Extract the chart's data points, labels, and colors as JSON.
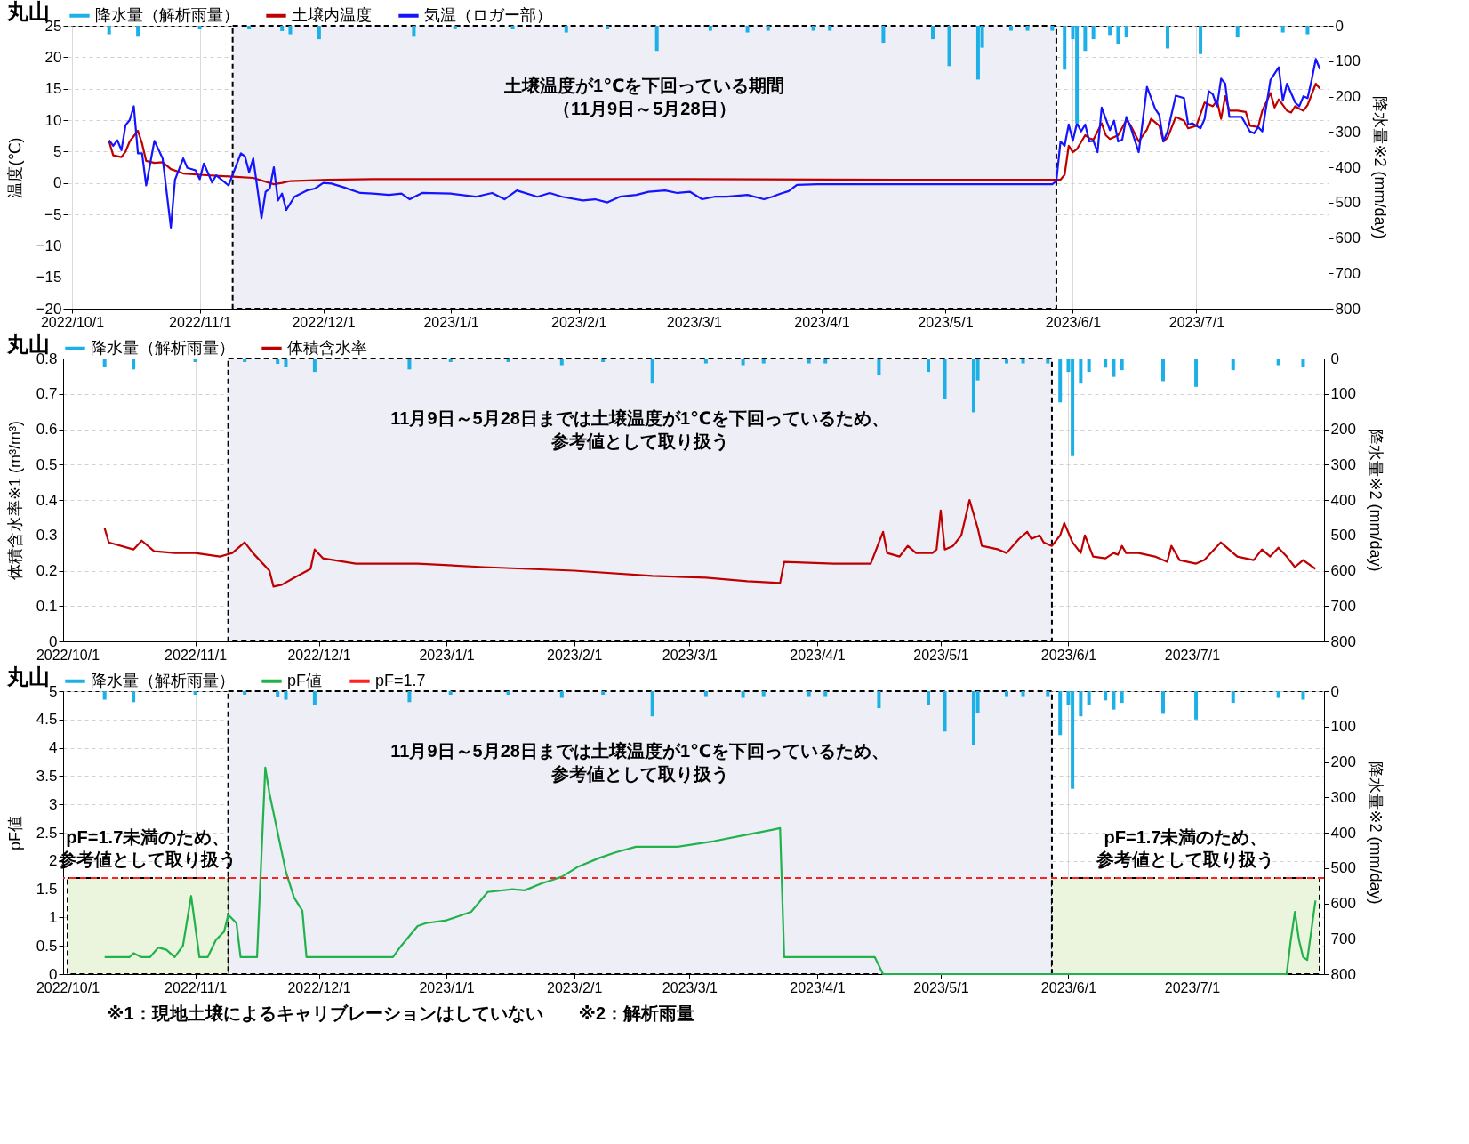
{
  "chart_data": [
    {
      "type": "line",
      "title": "丸山",
      "ylabel": "温度(℃)",
      "y2label": "降水量※2 (mm/day)",
      "xlim": [
        "2022-10-01",
        "2023-08-01"
      ],
      "xticks": [
        {
          "value": "2022-10-01",
          "label": "2022/10/1"
        },
        {
          "value": "2022-11-01",
          "label": "2022/11/1"
        },
        {
          "value": "2022-12-01",
          "label": "2022/12/1"
        },
        {
          "value": "2023-01-01",
          "label": "2023/1/1"
        },
        {
          "value": "2023-02-01",
          "label": "2023/2/1"
        },
        {
          "value": "2023-03-01",
          "label": "2023/3/1"
        },
        {
          "value": "2023-04-01",
          "label": "2023/4/1"
        },
        {
          "value": "2023-05-01",
          "label": "2023/5/1"
        },
        {
          "value": "2023-06-01",
          "label": "2023/6/1"
        },
        {
          "value": "2023-07-01",
          "label": "2023/7/1"
        }
      ],
      "ylim": [
        -20,
        25
      ],
      "yticks": [
        -20,
        -15,
        -10,
        -5,
        0,
        5,
        10,
        15,
        20,
        25
      ],
      "y2lim": [
        800,
        0
      ],
      "y2ticks": [
        0,
        100,
        200,
        300,
        400,
        500,
        600,
        700,
        800
      ],
      "grid": true,
      "legend": "top",
      "bands": [
        {
          "axis": "x",
          "from": "2022-11-09",
          "to": "2023-05-28",
          "label": "土壌温度が1℃を下回っている期間（11月9日～5月28日）",
          "color": "#eeeef6"
        }
      ],
      "series": [
        {
          "name": "降水量（解析雨量）",
          "type": "bar",
          "axis": "y2",
          "color": "#1cb0e6",
          "x": [
            "2022-10-10",
            "2022-10-17",
            "2022-11-01",
            "2022-11-13",
            "2022-11-21",
            "2022-11-23",
            "2022-11-30",
            "2022-12-23",
            "2023-01-02",
            "2023-01-16",
            "2023-01-29",
            "2023-02-08",
            "2023-02-20",
            "2023-03-05",
            "2023-03-14",
            "2023-03-19",
            "2023-03-30",
            "2023-04-03",
            "2023-04-16",
            "2023-04-28",
            "2023-05-02",
            "2023-05-09",
            "2023-05-10",
            "2023-05-17",
            "2023-05-21",
            "2023-05-27",
            "2023-05-30",
            "2023-06-01",
            "2023-06-02",
            "2023-06-04",
            "2023-06-06",
            "2023-06-10",
            "2023-06-12",
            "2023-06-14",
            "2023-06-24",
            "2023-07-02",
            "2023-07-11",
            "2023-07-22",
            "2023-07-28"
          ],
          "values": [
            24,
            31,
            10,
            10,
            15,
            24,
            38,
            31,
            10,
            10,
            19,
            10,
            71,
            14,
            19,
            14,
            14,
            14,
            48,
            38,
            114,
            152,
            62,
            14,
            14,
            14,
            124,
            38,
            276,
            71,
            38,
            26,
            52,
            33,
            64,
            80,
            33,
            19,
            24
          ]
        },
        {
          "name": "土壌内温度",
          "color": "#c00000",
          "x": [
            "2022-10-10",
            "2022-10-11",
            "2022-10-13",
            "2022-10-14",
            "2022-10-15",
            "2022-10-17",
            "2022-10-18",
            "2022-10-19",
            "2022-10-21",
            "2022-10-23",
            "2022-10-25",
            "2022-10-28",
            "2022-11-01",
            "2022-11-09",
            "2022-11-14",
            "2022-11-19",
            "2022-11-21",
            "2022-11-23",
            "2022-12-02",
            "2022-12-13",
            "2023-02-28",
            "2023-04-19",
            "2023-05-29",
            "2023-05-30",
            "2023-05-31",
            "2023-06-01",
            "2023-06-02",
            "2023-06-04",
            "2023-06-05",
            "2023-06-06",
            "2023-06-08",
            "2023-06-09",
            "2023-06-10",
            "2023-06-12",
            "2023-06-14",
            "2023-06-15",
            "2023-06-16",
            "2023-06-17",
            "2023-06-19",
            "2023-06-20",
            "2023-06-22",
            "2023-06-23",
            "2023-06-24",
            "2023-06-26",
            "2023-06-28",
            "2023-06-29",
            "2023-07-01",
            "2023-07-03",
            "2023-07-05",
            "2023-07-06",
            "2023-07-07",
            "2023-07-08",
            "2023-07-09",
            "2023-07-11",
            "2023-07-13",
            "2023-07-14",
            "2023-07-16",
            "2023-07-17",
            "2023-07-19",
            "2023-07-20",
            "2023-07-21",
            "2023-07-23",
            "2023-07-24",
            "2023-07-25",
            "2023-07-26",
            "2023-07-27",
            "2023-07-28",
            "2023-07-29",
            "2023-07-30",
            "2023-07-31"
          ],
          "values": [
            6.6,
            4.4,
            4.1,
            5,
            6.6,
            8.3,
            6.3,
            3.5,
            3.2,
            3.3,
            2.2,
            1.5,
            1.3,
            1.0,
            0.8,
            -0.2,
            0,
            0.3,
            0.5,
            0.6,
            0.6,
            0.5,
            0.5,
            1.3,
            5.9,
            4.9,
            5.4,
            7.6,
            7.1,
            6.9,
            9.5,
            7.6,
            7.0,
            7.6,
            10,
            9.2,
            7.9,
            6.6,
            8.5,
            10.2,
            9.1,
            6.6,
            7.2,
            10.5,
            9.9,
            8.7,
            9.1,
            12.8,
            12.2,
            13.1,
            10.2,
            13.8,
            11.5,
            11.5,
            11.3,
            9.1,
            8.9,
            11.5,
            14.3,
            12,
            13.3,
            11.5,
            11.2,
            12.2,
            11.8,
            11.5,
            12.4,
            14.1,
            15.8,
            15
          ]
        },
        {
          "name": "気温（ロガー部）",
          "color": "#1414ff",
          "x": [
            "2022-10-10",
            "2022-10-11",
            "2022-10-12",
            "2022-10-13",
            "2022-10-14",
            "2022-10-15",
            "2022-10-16",
            "2022-10-17",
            "2022-10-18",
            "2022-10-19",
            "2022-10-21",
            "2022-10-23",
            "2022-10-25",
            "2022-10-26",
            "2022-10-28",
            "2022-10-29",
            "2022-10-31",
            "2022-11-01",
            "2022-11-02",
            "2022-11-04",
            "2022-11-05",
            "2022-11-08",
            "2022-11-11",
            "2022-11-12",
            "2022-11-13",
            "2022-11-14",
            "2022-11-16",
            "2022-11-17",
            "2022-11-18",
            "2022-11-19",
            "2022-11-20",
            "2022-11-21",
            "2022-11-22",
            "2022-11-24",
            "2022-11-27",
            "2022-11-29",
            "2022-12-01",
            "2022-12-03",
            "2022-12-06",
            "2022-12-10",
            "2022-12-13",
            "2022-12-17",
            "2022-12-20",
            "2022-12-22",
            "2022-12-25",
            "2023-01-01",
            "2023-01-07",
            "2023-01-11",
            "2023-01-14",
            "2023-01-17",
            "2023-01-22",
            "2023-01-25",
            "2023-01-28",
            "2023-02-02",
            "2023-02-05",
            "2023-02-08",
            "2023-02-11",
            "2023-02-15",
            "2023-02-18",
            "2023-02-22",
            "2023-02-25",
            "2023-02-28",
            "2023-03-03",
            "2023-03-06",
            "2023-03-09",
            "2023-03-14",
            "2023-03-18",
            "2023-03-20",
            "2023-03-22",
            "2023-03-24",
            "2023-03-26",
            "2023-03-31",
            "2023-05-27",
            "2023-05-28",
            "2023-05-29",
            "2023-05-30",
            "2023-05-31",
            "2023-06-01",
            "2023-06-02",
            "2023-06-03",
            "2023-06-04",
            "2023-06-05",
            "2023-06-06",
            "2023-06-07",
            "2023-06-08",
            "2023-06-09",
            "2023-06-10",
            "2023-06-11",
            "2023-06-12",
            "2023-06-13",
            "2023-06-14",
            "2023-06-15",
            "2023-06-17",
            "2023-06-18",
            "2023-06-19",
            "2023-06-21",
            "2023-06-22",
            "2023-06-23",
            "2023-06-24",
            "2023-06-26",
            "2023-06-28",
            "2023-06-29",
            "2023-06-30",
            "2023-07-01",
            "2023-07-02",
            "2023-07-03",
            "2023-07-04",
            "2023-07-05",
            "2023-07-06",
            "2023-07-07",
            "2023-07-08",
            "2023-07-09",
            "2023-07-12",
            "2023-07-14",
            "2023-07-15",
            "2023-07-16",
            "2023-07-17",
            "2023-07-19",
            "2023-07-21",
            "2023-07-22",
            "2023-07-23",
            "2023-07-25",
            "2023-07-26",
            "2023-07-27",
            "2023-07-28",
            "2023-07-29",
            "2023-07-30",
            "2023-07-31"
          ],
          "values": [
            6.8,
            5.9,
            6.8,
            5.2,
            9.2,
            10,
            12.2,
            4.7,
            4.7,
            -0.4,
            6.7,
            3.9,
            -7.1,
            0.5,
            3.9,
            2.4,
            2,
            0.6,
            3.1,
            0.1,
            1.2,
            -0.4,
            4.7,
            4.2,
            1.7,
            3.9,
            -5.6,
            -1.4,
            -0.9,
            2.5,
            -2.8,
            -1.7,
            -4.3,
            -2.2,
            -1.2,
            -0.9,
            0,
            -0.1,
            -0.7,
            -1.6,
            -1.7,
            -1.9,
            -1.7,
            -2.6,
            -1.6,
            -1.7,
            -2.2,
            -1.6,
            -2.6,
            -1.2,
            -2.2,
            -1.6,
            -2.2,
            -2.8,
            -2.6,
            -3.1,
            -2.2,
            -1.9,
            -1.4,
            -1.2,
            -1.6,
            -1.4,
            -2.6,
            -2.2,
            -2.2,
            -1.9,
            -2.6,
            -2.2,
            -1.7,
            -1.3,
            -0.3,
            -0.2,
            -0.2,
            0.3,
            6.6,
            5.9,
            9.3,
            6.7,
            9.5,
            8.2,
            9.3,
            6.6,
            6.7,
            4.9,
            12,
            10.2,
            8.4,
            9.9,
            6.6,
            6.9,
            10.5,
            8.9,
            4.9,
            10,
            15.3,
            11.8,
            10.8,
            6.6,
            8.2,
            13.9,
            13.5,
            9.3,
            9.5,
            9.1,
            8.7,
            10.2,
            14.6,
            14.1,
            12.2,
            16.6,
            15.8,
            10.5,
            10.5,
            8.2,
            7.9,
            8.9,
            8.2,
            16.4,
            18.4,
            13.1,
            15.8,
            12.8,
            12.2,
            13.8,
            13.5,
            16.4,
            19.7,
            18.1
          ]
        }
      ]
    },
    {
      "type": "line",
      "title": "丸山",
      "ylabel": "体積含水率※1 (m³/m³)",
      "y2label": "降水量※2 (mm/day)",
      "xlim": [
        "2022-10-01",
        "2023-08-01"
      ],
      "xticks": [
        {
          "value": "2022-10-01",
          "label": "2022/10/1"
        },
        {
          "value": "2022-11-01",
          "label": "2022/11/1"
        },
        {
          "value": "2022-12-01",
          "label": "2022/12/1"
        },
        {
          "value": "2023-01-01",
          "label": "2023/1/1"
        },
        {
          "value": "2023-02-01",
          "label": "2023/2/1"
        },
        {
          "value": "2023-03-01",
          "label": "2023/3/1"
        },
        {
          "value": "2023-04-01",
          "label": "2023/4/1"
        },
        {
          "value": "2023-05-01",
          "label": "2023/5/1"
        },
        {
          "value": "2023-06-01",
          "label": "2023/6/1"
        },
        {
          "value": "2023-07-01",
          "label": "2023/7/1"
        }
      ],
      "ylim": [
        0,
        0.8
      ],
      "yticks": [
        0,
        0.1,
        0.2,
        0.3,
        0.4,
        0.5,
        0.6,
        0.7,
        0.8
      ],
      "y2lim": [
        800,
        0
      ],
      "y2ticks": [
        0,
        100,
        200,
        300,
        400,
        500,
        600,
        700,
        800
      ],
      "grid": true,
      "legend": "top",
      "bands": [
        {
          "axis": "x",
          "from": "2022-11-09",
          "to": "2023-05-28",
          "label": "11月9日～5月28日までは土壌温度が1℃を下回っているため、参考値として取り扱う",
          "color": "#eeeef6"
        }
      ],
      "series": [
        {
          "name": "降水量（解析雨量）",
          "type": "bar",
          "axis": "y2",
          "color": "#1cb0e6",
          "x": [
            "2022-10-10",
            "2022-10-17",
            "2022-11-01",
            "2022-11-13",
            "2022-11-21",
            "2022-11-23",
            "2022-11-30",
            "2022-12-23",
            "2023-01-02",
            "2023-01-16",
            "2023-01-29",
            "2023-02-08",
            "2023-02-20",
            "2023-03-05",
            "2023-03-14",
            "2023-03-19",
            "2023-03-30",
            "2023-04-03",
            "2023-04-16",
            "2023-04-28",
            "2023-05-02",
            "2023-05-09",
            "2023-05-10",
            "2023-05-17",
            "2023-05-21",
            "2023-05-27",
            "2023-05-30",
            "2023-06-01",
            "2023-06-02",
            "2023-06-04",
            "2023-06-06",
            "2023-06-10",
            "2023-06-12",
            "2023-06-14",
            "2023-06-24",
            "2023-07-02",
            "2023-07-11",
            "2023-07-22",
            "2023-07-28"
          ],
          "values": [
            24,
            31,
            10,
            10,
            15,
            24,
            38,
            31,
            10,
            10,
            19,
            10,
            71,
            14,
            19,
            14,
            14,
            14,
            48,
            38,
            114,
            152,
            62,
            14,
            14,
            14,
            124,
            38,
            276,
            71,
            38,
            26,
            52,
            33,
            64,
            80,
            33,
            19,
            24
          ]
        },
        {
          "name": "体積含水率",
          "color": "#c00000",
          "x": [
            "2022-10-10",
            "2022-10-11",
            "2022-10-17",
            "2022-10-19",
            "2022-10-22",
            "2022-10-27",
            "2022-11-01",
            "2022-11-04",
            "2022-11-07",
            "2022-11-10",
            "2022-11-13",
            "2022-11-15",
            "2022-11-19",
            "2022-11-20",
            "2022-11-22",
            "2022-11-25",
            "2022-11-29",
            "2022-11-30",
            "2022-12-02",
            "2022-12-10",
            "2022-12-25",
            "2023-01-10",
            "2023-02-01",
            "2023-02-20",
            "2023-03-05",
            "2023-03-15",
            "2023-03-23",
            "2023-03-24",
            "2023-04-05",
            "2023-04-12",
            "2023-04-14",
            "2023-04-17",
            "2023-04-18",
            "2023-04-21",
            "2023-04-23",
            "2023-04-25",
            "2023-04-29",
            "2023-04-30",
            "2023-05-01",
            "2023-05-02",
            "2023-05-04",
            "2023-05-06",
            "2023-05-08",
            "2023-05-10",
            "2023-05-11",
            "2023-05-15",
            "2023-05-17",
            "2023-05-20",
            "2023-05-22",
            "2023-05-23",
            "2023-05-25",
            "2023-05-26",
            "2023-05-28",
            "2023-05-30",
            "2023-05-31",
            "2023-06-02",
            "2023-06-04",
            "2023-06-05",
            "2023-06-07",
            "2023-06-10",
            "2023-06-12",
            "2023-06-13",
            "2023-06-14",
            "2023-06-15",
            "2023-06-18",
            "2023-06-22",
            "2023-06-25",
            "2023-06-26",
            "2023-06-28",
            "2023-07-02",
            "2023-07-04",
            "2023-07-08",
            "2023-07-12",
            "2023-07-16",
            "2023-07-18",
            "2023-07-20",
            "2023-07-22",
            "2023-07-24",
            "2023-07-26",
            "2023-07-28",
            "2023-07-31"
          ],
          "values": [
            0.32,
            0.28,
            0.26,
            0.285,
            0.255,
            0.25,
            0.25,
            0.245,
            0.24,
            0.25,
            0.28,
            0.25,
            0.2,
            0.155,
            0.16,
            0.18,
            0.205,
            0.26,
            0.235,
            0.22,
            0.22,
            0.21,
            0.2,
            0.185,
            0.18,
            0.17,
            0.165,
            0.225,
            0.22,
            0.22,
            0.22,
            0.31,
            0.25,
            0.24,
            0.27,
            0.25,
            0.25,
            0.26,
            0.37,
            0.26,
            0.27,
            0.3,
            0.4,
            0.32,
            0.27,
            0.26,
            0.25,
            0.29,
            0.31,
            0.29,
            0.3,
            0.28,
            0.27,
            0.3,
            0.335,
            0.28,
            0.25,
            0.3,
            0.24,
            0.235,
            0.25,
            0.245,
            0.27,
            0.25,
            0.25,
            0.24,
            0.225,
            0.27,
            0.23,
            0.22,
            0.23,
            0.28,
            0.24,
            0.23,
            0.26,
            0.24,
            0.265,
            0.24,
            0.21,
            0.23,
            0.205
          ]
        }
      ]
    },
    {
      "type": "line",
      "title": "丸山",
      "ylabel": "pF値",
      "y2label": "降水量※2 (mm/day)",
      "xlim": [
        "2022-10-01",
        "2023-08-01"
      ],
      "xticks": [
        {
          "value": "2022-10-01",
          "label": "2022/10/1"
        },
        {
          "value": "2022-11-01",
          "label": "2022/11/1"
        },
        {
          "value": "2022-12-01",
          "label": "2022/12/1"
        },
        {
          "value": "2023-01-01",
          "label": "2023/1/1"
        },
        {
          "value": "2023-02-01",
          "label": "2023/2/1"
        },
        {
          "value": "2023-03-01",
          "label": "2023/3/1"
        },
        {
          "value": "2023-04-01",
          "label": "2023/4/1"
        },
        {
          "value": "2023-05-01",
          "label": "2023/5/1"
        },
        {
          "value": "2023-06-01",
          "label": "2023/6/1"
        },
        {
          "value": "2023-07-01",
          "label": "2023/7/1"
        }
      ],
      "ylim": [
        0,
        5
      ],
      "yticks": [
        0,
        0.5,
        1,
        1.5,
        2,
        2.5,
        3,
        3.5,
        4,
        4.5,
        5
      ],
      "y2lim": [
        800,
        0
      ],
      "y2ticks": [
        0,
        100,
        200,
        300,
        400,
        500,
        600,
        700,
        800
      ],
      "grid": true,
      "legend": "top",
      "bands": [
        {
          "axis": "x",
          "from": "2022-11-09",
          "to": "2023-05-28",
          "label": "11月9日～5月28日までは土壌温度が1℃を下回っているため、参考値として取り扱う",
          "color": "#eeeef6"
        },
        {
          "axis": "x",
          "from": "2022-10-01",
          "to": "2022-11-09",
          "label": "pF=1.7未満のため、参考値として取り扱う",
          "color": "#ebf5de"
        },
        {
          "axis": "x",
          "from": "2023-05-28",
          "to": "2023-08-01",
          "label": "pF=1.7未満のため、参考値として取り扱う",
          "color": "#ebf5de"
        }
      ],
      "ref_lines": [
        {
          "axis": "y",
          "value": 1.7,
          "label": "pF=1.7",
          "color": "#ff2020",
          "line_style": "dashed"
        }
      ],
      "annotations": [
        "※1：現地土壌によるキャリブレーションはしていない　　※2：解析雨量"
      ],
      "series": [
        {
          "name": "降水量（解析雨量）",
          "type": "bar",
          "axis": "y2",
          "color": "#1cb0e6",
          "x": [
            "2022-10-10",
            "2022-10-17",
            "2022-11-01",
            "2022-11-13",
            "2022-11-21",
            "2022-11-23",
            "2022-11-30",
            "2022-12-23",
            "2023-01-02",
            "2023-01-16",
            "2023-01-29",
            "2023-02-08",
            "2023-02-20",
            "2023-03-05",
            "2023-03-14",
            "2023-03-19",
            "2023-03-30",
            "2023-04-03",
            "2023-04-16",
            "2023-04-28",
            "2023-05-02",
            "2023-05-09",
            "2023-05-10",
            "2023-05-17",
            "2023-05-21",
            "2023-05-27",
            "2023-05-30",
            "2023-06-01",
            "2023-06-02",
            "2023-06-04",
            "2023-06-06",
            "2023-06-10",
            "2023-06-12",
            "2023-06-14",
            "2023-06-24",
            "2023-07-02",
            "2023-07-11",
            "2023-07-22",
            "2023-07-28"
          ],
          "values": [
            24,
            31,
            10,
            10,
            15,
            24,
            38,
            31,
            10,
            10,
            19,
            10,
            71,
            14,
            19,
            14,
            14,
            14,
            48,
            38,
            114,
            152,
            62,
            14,
            14,
            14,
            124,
            38,
            276,
            71,
            38,
            26,
            52,
            33,
            64,
            80,
            33,
            19,
            24
          ]
        },
        {
          "name": "pF値",
          "color": "#21b24b",
          "x": [
            "2022-10-10",
            "2022-10-16",
            "2022-10-17",
            "2022-10-19",
            "2022-10-21",
            "2022-10-23",
            "2022-10-25",
            "2022-10-27",
            "2022-10-29",
            "2022-10-31",
            "2022-11-02",
            "2022-11-04",
            "2022-11-06",
            "2022-11-08",
            "2022-11-09",
            "2022-11-11",
            "2022-11-12",
            "2022-11-16",
            "2022-11-18",
            "2022-11-19",
            "2022-11-23",
            "2022-11-25",
            "2022-11-27",
            "2022-11-28",
            "2022-12-19",
            "2022-12-21",
            "2022-12-25",
            "2022-12-27",
            "2023-01-01",
            "2023-01-07",
            "2023-01-11",
            "2023-01-17",
            "2023-01-20",
            "2023-01-24",
            "2023-01-29",
            "2023-02-02",
            "2023-02-07",
            "2023-02-11",
            "2023-02-16",
            "2023-02-20",
            "2023-02-26",
            "2023-03-07",
            "2023-03-14",
            "2023-03-21",
            "2023-03-23",
            "2023-03-24",
            "2023-04-15",
            "2023-04-17",
            "2023-07-24",
            "2023-07-25",
            "2023-07-26",
            "2023-07-27",
            "2023-07-28",
            "2023-07-29",
            "2023-07-31"
          ],
          "values": [
            0.3,
            0.3,
            0.37,
            0.3,
            0.3,
            0.47,
            0.43,
            0.3,
            0.5,
            1.38,
            0.3,
            0.3,
            0.6,
            0.75,
            1.05,
            0.9,
            0.3,
            0.3,
            3.65,
            3.2,
            1.81,
            1.35,
            1.12,
            0.3,
            0.3,
            0.5,
            0.85,
            0.9,
            0.95,
            1.1,
            1.45,
            1.5,
            1.48,
            1.6,
            1.72,
            1.9,
            2.05,
            2.15,
            2.25,
            2.25,
            2.25,
            2.35,
            2.45,
            2.55,
            2.58,
            0.3,
            0.3,
            0,
            0,
            0.6,
            1.1,
            0.6,
            0.3,
            0.25,
            1.3
          ]
        }
      ]
    }
  ]
}
